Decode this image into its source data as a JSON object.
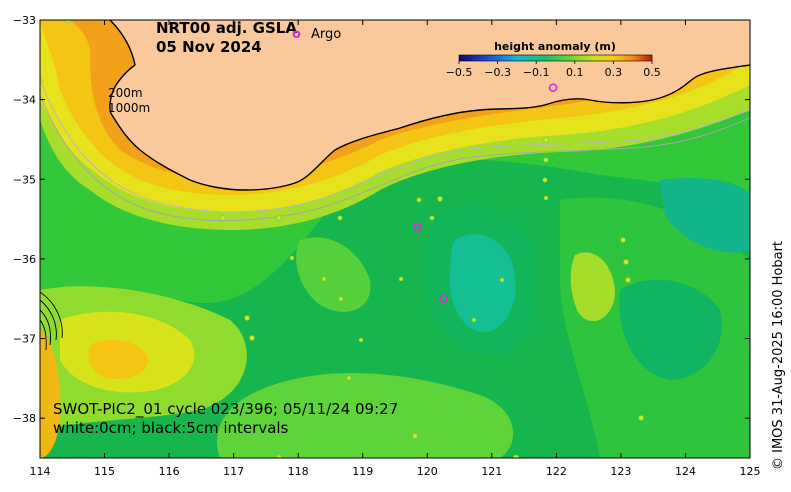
{
  "title": {
    "line1": "NRT00 adj. GSLA",
    "line2": "05 Nov 2024"
  },
  "legend": {
    "argo_symbol": "o",
    "argo_label": "Argo",
    "colorbar_title": "height anomaly (m)",
    "colorbar_ticks": [
      "−0.5",
      "−0.3",
      "−0.1",
      "0.1",
      "0.3",
      "0.5"
    ],
    "colorbar_range": [
      -0.5,
      0.5
    ]
  },
  "depth_labels": [
    "200m",
    "1000m"
  ],
  "swot_info": {
    "line1": "SWOT-PIC2_01 cycle 023/396; 05/11/24 09:27",
    "line2": "white:0cm; black:5cm intervals"
  },
  "credit": "© IMOS 31-Aug-2025 16:00 Hobart",
  "axes": {
    "x_ticks": [
      "114",
      "115",
      "116",
      "117",
      "118",
      "119",
      "120",
      "121",
      "122",
      "123",
      "124",
      "125"
    ],
    "y_ticks": [
      "−33",
      "−34",
      "−35",
      "−36",
      "−37",
      "−38"
    ],
    "lon_range": [
      114,
      125
    ],
    "lat_range": [
      -38.5,
      -33
    ]
  },
  "colors": {
    "land": "#f9c99b",
    "ocean_base": "#33c73a",
    "argo": "#d62fd6"
  },
  "argo_floats": [
    {
      "lon": 119.85,
      "lat": -35.6
    },
    {
      "lon": 120.25,
      "lat": -36.5
    },
    {
      "lon": 121.95,
      "lat": -33.85
    }
  ]
}
